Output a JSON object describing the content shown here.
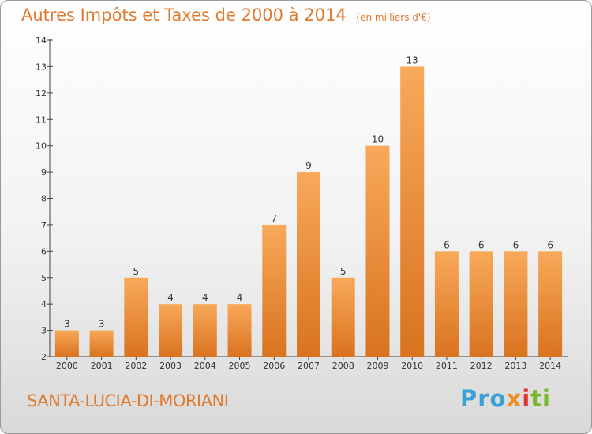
{
  "title": {
    "main": "Autres Impôts et Taxes de 2000 à 2014",
    "unit": "(en milliers d'€)"
  },
  "commune": "SANTA-LUCIA-DI-MORIANI",
  "logo": {
    "letters": [
      "Pro",
      "x",
      "i",
      "ti"
    ]
  },
  "colors": {
    "bar_light": "#f8a95a",
    "bar_dark": "#d9731f",
    "title": "#e07a2e"
  },
  "chart_data": {
    "type": "bar",
    "categories": [
      "2000",
      "2001",
      "2002",
      "2003",
      "2004",
      "2005",
      "2006",
      "2007",
      "2008",
      "2009",
      "2010",
      "2011",
      "2012",
      "2013",
      "2014"
    ],
    "values": [
      3,
      3,
      5,
      4,
      4,
      4,
      7,
      9,
      5,
      10,
      13,
      6,
      6,
      6,
      6
    ],
    "ylim": [
      2,
      14
    ],
    "yticks": [
      2,
      3,
      4,
      5,
      6,
      7,
      8,
      9,
      10,
      11,
      12,
      13,
      14
    ],
    "grid": false,
    "data_labels": true
  }
}
